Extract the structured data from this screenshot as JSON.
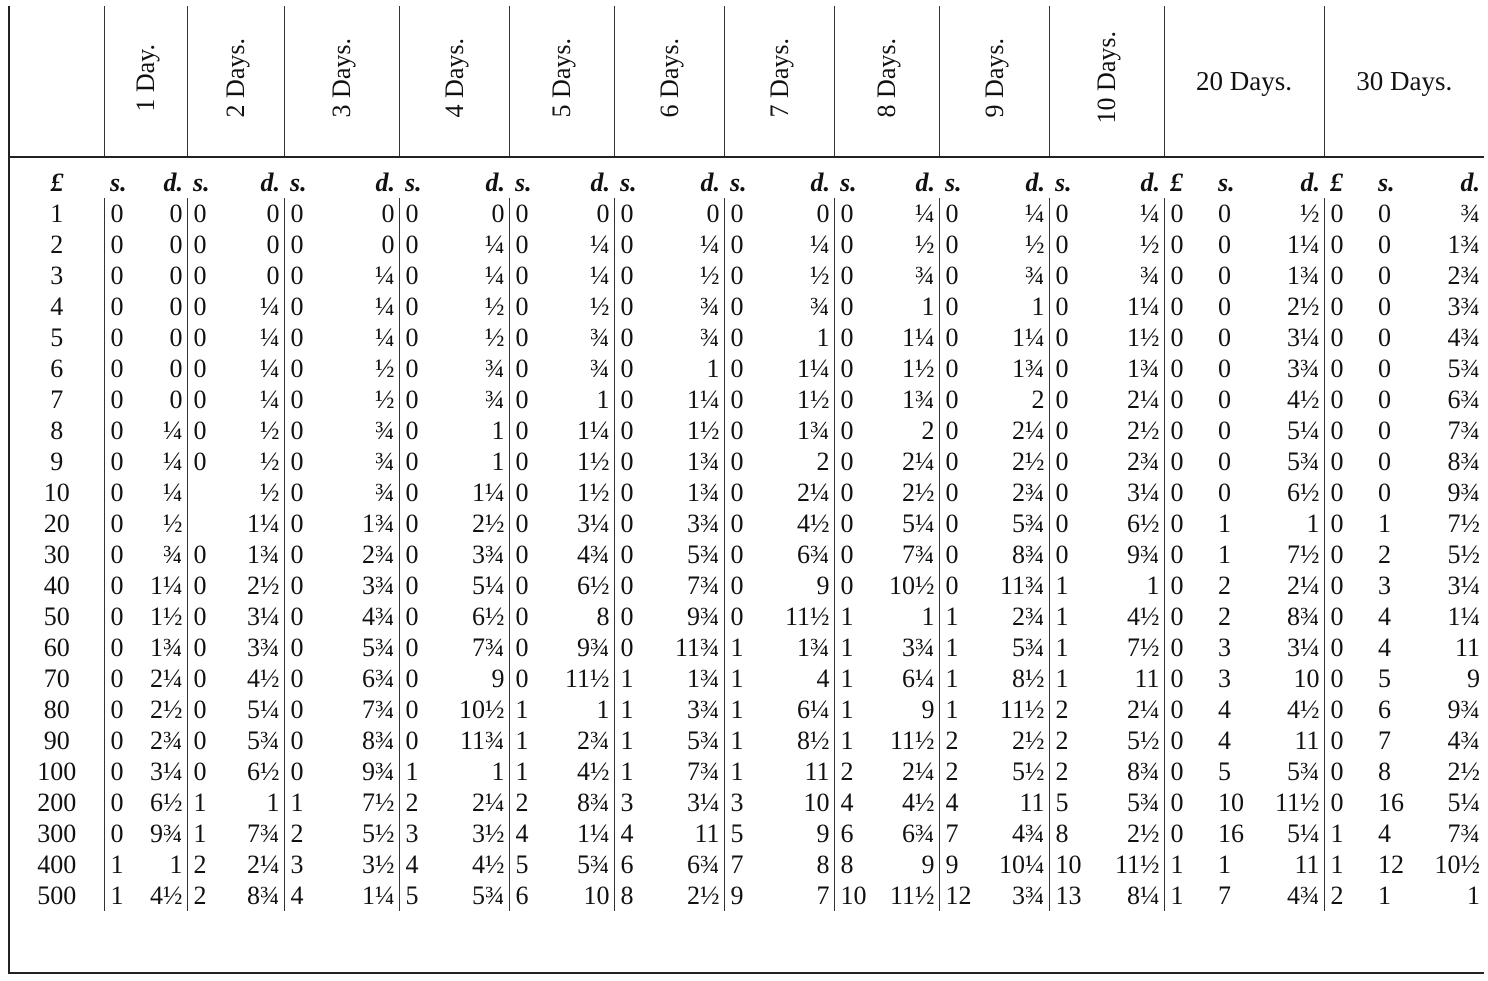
{
  "table": {
    "periods": [
      "1 Day.",
      "2 Days.",
      "3 Days.",
      "4 Days.",
      "5 Days.",
      "6 Days.",
      "7 Days.",
      "8 Days.",
      "9 Days.",
      "10 Days.",
      "20 Days.",
      "30 Days."
    ],
    "subheaders": [
      "£",
      "s.",
      "d.",
      "s.",
      "d.",
      "s.",
      "d.",
      "s.",
      "d.",
      "s.",
      "d.",
      "s.",
      "d.",
      "s.",
      "d.",
      "s.",
      "d.",
      "s.",
      "d.",
      "s.",
      "d.",
      "£",
      "s.",
      "d.",
      "£",
      "s.",
      "d."
    ],
    "rows": [
      [
        "1",
        "0",
        "0",
        "0",
        "0",
        "0",
        "0",
        "0",
        "0",
        "0",
        "0",
        "0",
        "0",
        "0",
        "0",
        "0",
        "¼",
        "0",
        "¼",
        "0",
        "¼",
        "0",
        "0",
        "½",
        "0",
        "0",
        "¾"
      ],
      [
        "2",
        "0",
        "0",
        "0",
        "0",
        "0",
        "0",
        "0",
        "¼",
        "0",
        "¼",
        "0",
        "¼",
        "0",
        "¼",
        "0",
        "½",
        "0",
        "½",
        "0",
        "½",
        "0",
        "0",
        "1¼",
        "0",
        "0",
        "1¾"
      ],
      [
        "3",
        "0",
        "0",
        "0",
        "0",
        "0",
        "¼",
        "0",
        "¼",
        "0",
        "¼",
        "0",
        "½",
        "0",
        "½",
        "0",
        "¾",
        "0",
        "¾",
        "0",
        "¾",
        "0",
        "0",
        "1¾",
        "0",
        "0",
        "2¾"
      ],
      [
        "4",
        "0",
        "0",
        "0",
        "¼",
        "0",
        "¼",
        "0",
        "½",
        "0",
        "½",
        "0",
        "¾",
        "0",
        "¾",
        "0",
        "1",
        "0",
        "1",
        "0",
        "1¼",
        "0",
        "0",
        "2½",
        "0",
        "0",
        "3¾"
      ],
      [
        "5",
        "0",
        "0",
        "0",
        "¼",
        "0",
        "¼",
        "0",
        "½",
        "0",
        "¾",
        "0",
        "¾",
        "0",
        "1",
        "0",
        "1¼",
        "0",
        "1¼",
        "0",
        "1½",
        "0",
        "0",
        "3¼",
        "0",
        "0",
        "4¾"
      ],
      [
        "6",
        "0",
        "0",
        "0",
        "¼",
        "0",
        "½",
        "0",
        "¾",
        "0",
        "¾",
        "0",
        "1",
        "0",
        "1¼",
        "0",
        "1½",
        "0",
        "1¾",
        "0",
        "1¾",
        "0",
        "0",
        "3¾",
        "0",
        "0",
        "5¾"
      ],
      [
        "7",
        "0",
        "0",
        "0",
        "¼",
        "0",
        "½",
        "0",
        "¾",
        "0",
        "1",
        "0",
        "1¼",
        "0",
        "1½",
        "0",
        "1¾",
        "0",
        "2",
        "0",
        "2¼",
        "0",
        "0",
        "4½",
        "0",
        "0",
        "6¾"
      ],
      [
        "8",
        "0",
        "¼",
        "0",
        "½",
        "0",
        "¾",
        "0",
        "1",
        "0",
        "1¼",
        "0",
        "1½",
        "0",
        "1¾",
        "0",
        "2",
        "0",
        "2¼",
        "0",
        "2½",
        "0",
        "0",
        "5¼",
        "0",
        "0",
        "7¾"
      ],
      [
        "9",
        "0",
        "¼",
        "0",
        "½",
        "0",
        "¾",
        "0",
        "1",
        "0",
        "1½",
        "0",
        "1¾",
        "0",
        "2",
        "0",
        "2¼",
        "0",
        "2½",
        "0",
        "2¾",
        "0",
        "0",
        "5¾",
        "0",
        "0",
        "8¾"
      ],
      [
        "10",
        "0",
        "¼",
        null,
        "½",
        "0",
        "¾",
        "0",
        "1¼",
        "0",
        "1½",
        "0",
        "1¾",
        "0",
        "2¼",
        "0",
        "2½",
        "0",
        "2¾",
        "0",
        "3¼",
        "0",
        "0",
        "6½",
        "0",
        "0",
        "9¾"
      ],
      [
        "20",
        "0",
        "½",
        null,
        "1¼",
        "0",
        "1¾",
        "0",
        "2½",
        "0",
        "3¼",
        "0",
        "3¾",
        "0",
        "4½",
        "0",
        "5¼",
        "0",
        "5¾",
        "0",
        "6½",
        "0",
        "1",
        "1",
        "0",
        "1",
        "7½"
      ],
      [
        "30",
        "0",
        "¾",
        "0",
        "1¾",
        "0",
        "2¾",
        "0",
        "3¾",
        "0",
        "4¾",
        "0",
        "5¾",
        "0",
        "6¾",
        "0",
        "7¾",
        "0",
        "8¾",
        "0",
        "9¾",
        "0",
        "1",
        "7½",
        "0",
        "2",
        "5½"
      ],
      [
        "40",
        "0",
        "1¼",
        "0",
        "2½",
        "0",
        "3¾",
        "0",
        "5¼",
        "0",
        "6½",
        "0",
        "7¾",
        "0",
        "9",
        "0",
        "10½",
        "0",
        "11¾",
        "1",
        "1",
        "0",
        "2",
        "2¼",
        "0",
        "3",
        "3¼"
      ],
      [
        "50",
        "0",
        "1½",
        "0",
        "3¼",
        "0",
        "4¾",
        "0",
        "6½",
        "0",
        "8",
        "0",
        "9¾",
        "0",
        "11½",
        "1",
        "1",
        "1",
        "2¾",
        "1",
        "4½",
        "0",
        "2",
        "8¾",
        "0",
        "4",
        "1¼"
      ],
      [
        "60",
        "0",
        "1¾",
        "0",
        "3¾",
        "0",
        "5¾",
        "0",
        "7¾",
        "0",
        "9¾",
        "0",
        "11¾",
        "1",
        "1¾",
        "1",
        "3¾",
        "1",
        "5¾",
        "1",
        "7½",
        "0",
        "3",
        "3¼",
        "0",
        "4",
        "11"
      ],
      [
        "70",
        "0",
        "2¼",
        "0",
        "4½",
        "0",
        "6¾",
        "0",
        "9",
        "0",
        "11½",
        "1",
        "1¾",
        "1",
        "4",
        "1",
        "6¼",
        "1",
        "8½",
        "1",
        "11",
        "0",
        "3",
        "10",
        "0",
        "5",
        "9"
      ],
      [
        "80",
        "0",
        "2½",
        "0",
        "5¼",
        "0",
        "7¾",
        "0",
        "10½",
        "1",
        "1",
        "1",
        "3¾",
        "1",
        "6¼",
        "1",
        "9",
        "1",
        "11½",
        "2",
        "2¼",
        "0",
        "4",
        "4½",
        "0",
        "6",
        "9¾"
      ],
      [
        "90",
        "0",
        "2¾",
        "0",
        "5¾",
        "0",
        "8¾",
        "0",
        "11¾",
        "1",
        "2¾",
        "1",
        "5¾",
        "1",
        "8½",
        "1",
        "11½",
        "2",
        "2½",
        "2",
        "5½",
        "0",
        "4",
        "11",
        "0",
        "7",
        "4¾"
      ],
      [
        "100",
        "0",
        "3¼",
        "0",
        "6½",
        "0",
        "9¾",
        "1",
        "1",
        "1",
        "4½",
        "1",
        "7¾",
        "1",
        "11",
        "2",
        "2¼",
        "2",
        "5½",
        "2",
        "8¾",
        "0",
        "5",
        "5¾",
        "0",
        "8",
        "2½"
      ],
      [
        "200",
        "0",
        "6½",
        "1",
        "1",
        "1",
        "7½",
        "2",
        "2¼",
        "2",
        "8¾",
        "3",
        "3¼",
        "3",
        "10",
        "4",
        "4½",
        "4",
        "11",
        "5",
        "5¾",
        "0",
        "10",
        "11½",
        "0",
        "16",
        "5¼"
      ],
      [
        "300",
        "0",
        "9¾",
        "1",
        "7¾",
        "2",
        "5½",
        "3",
        "3½",
        "4",
        "1¼",
        "4",
        "11",
        "5",
        "9",
        "6",
        "6¾",
        "7",
        "4¾",
        "8",
        "2½",
        "0",
        "16",
        "5¼",
        "1",
        "4",
        "7¾"
      ],
      [
        "400",
        "1",
        "1",
        "2",
        "2¼",
        "3",
        "3½",
        "4",
        "4½",
        "5",
        "5¾",
        "6",
        "6¾",
        "7",
        "8",
        "8",
        "9",
        "9",
        "10¼",
        "10",
        "11½",
        "1",
        "1",
        "11",
        "1",
        "12",
        "10½"
      ],
      [
        "500",
        "1",
        "4½",
        "2",
        "8¾",
        "4",
        "1¼",
        "5",
        "5¾",
        "6",
        "10",
        "8",
        "2½",
        "9",
        "7",
        "10",
        "11½",
        "12",
        "3¾",
        "13",
        "8¼",
        "1",
        "7",
        "4¾",
        "2",
        "1",
        "1"
      ]
    ]
  }
}
